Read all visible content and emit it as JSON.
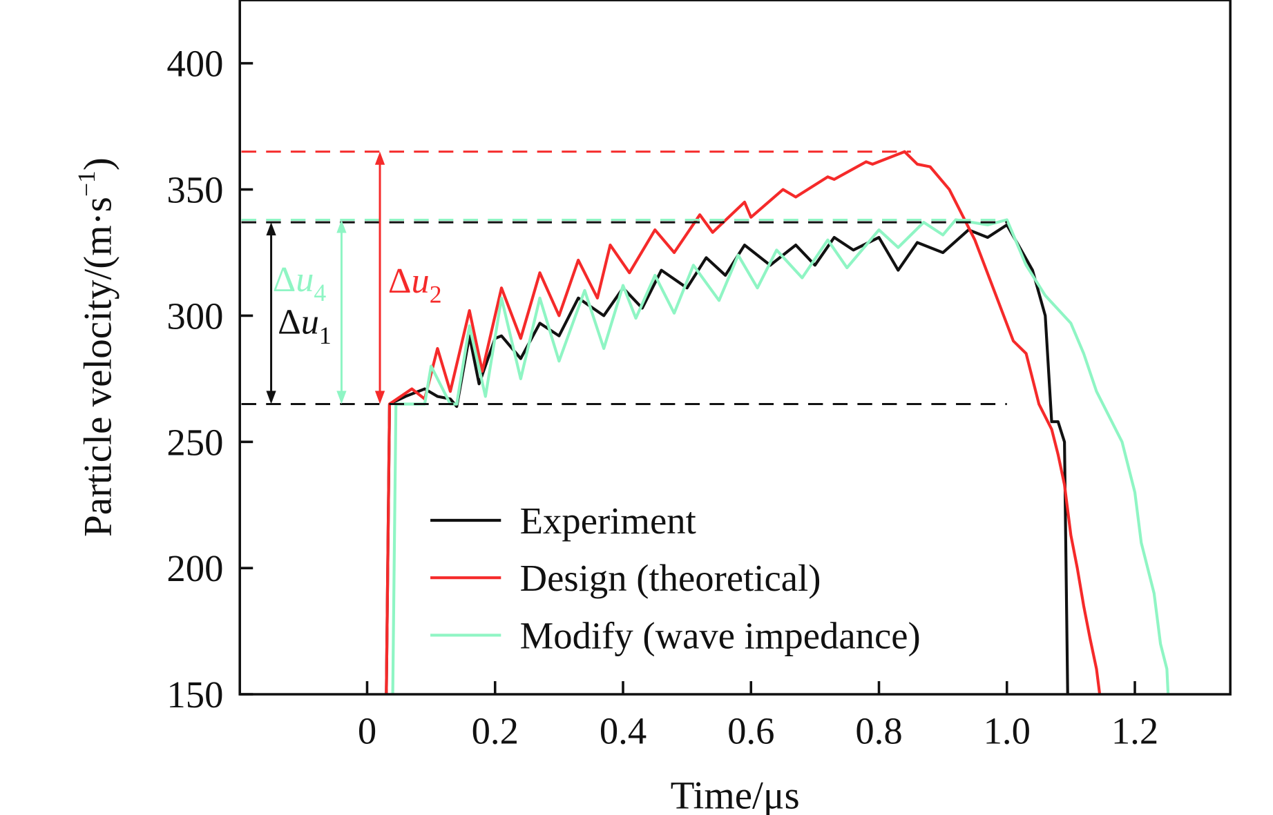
{
  "chart_data": {
    "type": "line",
    "xlabel": "Time/μs",
    "ylabel": "Particle velocity/(m·s",
    "ylabel_sup": "−1",
    "ylabel_close": ")",
    "xlim": [
      -0.2,
      1.35
    ],
    "ylim": [
      150,
      425
    ],
    "xticks": [
      0,
      0.2,
      0.4,
      0.6,
      0.8,
      1.0,
      1.2
    ],
    "xtick_labels": [
      "0",
      "0.2",
      "0.4",
      "0.6",
      "0.8",
      "1.0",
      "1.2"
    ],
    "yticks": [
      150,
      200,
      250,
      300,
      350,
      400
    ],
    "ytick_labels": [
      "150",
      "200",
      "250",
      "300",
      "350",
      "400"
    ],
    "grid": false,
    "legend_position": "bottom-center",
    "series": [
      {
        "name": "Experiment",
        "color": "#111111",
        "x": [
          0.03,
          0.035,
          0.06,
          0.09,
          0.11,
          0.13,
          0.14,
          0.16,
          0.175,
          0.2,
          0.21,
          0.24,
          0.27,
          0.3,
          0.33,
          0.37,
          0.4,
          0.43,
          0.46,
          0.5,
          0.53,
          0.56,
          0.59,
          0.63,
          0.67,
          0.7,
          0.73,
          0.76,
          0.8,
          0.83,
          0.86,
          0.9,
          0.94,
          0.97,
          1.0,
          1.04,
          1.06,
          1.07,
          1.08,
          1.09,
          1.095
        ],
        "y": [
          150,
          265,
          268,
          271,
          268,
          267,
          264,
          292,
          273,
          291,
          292,
          283,
          297,
          292,
          307,
          300,
          311,
          303,
          318,
          311,
          323,
          316,
          328,
          320,
          328,
          320,
          331,
          326,
          331,
          318,
          329,
          325,
          334,
          331,
          336,
          318,
          300,
          258,
          258,
          250,
          150
        ]
      },
      {
        "name": "Design (theoretical)",
        "color": "#f52a2a",
        "x": [
          0.03,
          0.035,
          0.07,
          0.09,
          0.11,
          0.13,
          0.16,
          0.18,
          0.21,
          0.24,
          0.27,
          0.3,
          0.33,
          0.36,
          0.38,
          0.41,
          0.45,
          0.48,
          0.52,
          0.54,
          0.59,
          0.6,
          0.65,
          0.67,
          0.72,
          0.73,
          0.78,
          0.79,
          0.84,
          0.86,
          0.88,
          0.91,
          0.95,
          0.98,
          1.01,
          1.03,
          1.04,
          1.05,
          1.07,
          1.08,
          1.09,
          1.1,
          1.11,
          1.12,
          1.13,
          1.14,
          1.145
        ],
        "y": [
          150,
          265,
          271,
          267,
          287,
          270,
          302,
          278,
          311,
          291,
          317,
          300,
          322,
          307,
          328,
          317,
          334,
          325,
          340,
          333,
          345,
          339,
          350,
          347,
          355,
          354,
          361,
          360,
          365,
          360,
          359,
          350,
          330,
          310,
          290,
          285,
          275,
          265,
          255,
          245,
          233,
          213,
          200,
          185,
          172,
          160,
          150
        ]
      },
      {
        "name": "Modify (wave impedance)",
        "color": "#8ff5c4",
        "x": [
          0.04,
          0.045,
          0.09,
          0.1,
          0.13,
          0.14,
          0.16,
          0.185,
          0.21,
          0.24,
          0.27,
          0.3,
          0.34,
          0.37,
          0.4,
          0.42,
          0.45,
          0.48,
          0.51,
          0.55,
          0.58,
          0.61,
          0.64,
          0.68,
          0.72,
          0.75,
          0.8,
          0.83,
          0.87,
          0.9,
          0.92,
          0.97,
          1.0,
          1.03,
          1.06,
          1.1,
          1.12,
          1.14,
          1.16,
          1.18,
          1.2,
          1.21,
          1.23,
          1.24,
          1.25,
          1.252
        ],
        "y": [
          150,
          265,
          265,
          280,
          265,
          265,
          296,
          268,
          307,
          275,
          307,
          282,
          310,
          287,
          312,
          299,
          316,
          301,
          320,
          306,
          324,
          311,
          326,
          315,
          330,
          319,
          334,
          327,
          337,
          332,
          338,
          336,
          338,
          320,
          308,
          297,
          285,
          270,
          260,
          250,
          230,
          210,
          190,
          170,
          160,
          150
        ]
      }
    ],
    "reference_lines": [
      {
        "y": 365,
        "color": "#f52a2a",
        "x_end": 0.85
      },
      {
        "y": 338,
        "color": "#8ff5c4",
        "x_end": 1.0
      },
      {
        "y": 337,
        "color": "#111111",
        "x_end": 1.0
      },
      {
        "y": 265,
        "color": "#111111",
        "x_end": 1.0
      }
    ],
    "annotations": [
      {
        "label": "Δu",
        "sub": "1",
        "color": "#111111",
        "x": -0.15,
        "from": 265,
        "to": 337
      },
      {
        "label": "Δu",
        "sub": "4",
        "color": "#8ff5c4",
        "x": -0.04,
        "from": 265,
        "to": 338
      },
      {
        "label": "Δu",
        "sub": "2",
        "color": "#f52a2a",
        "x": 0.02,
        "from": 265,
        "to": 365
      }
    ]
  }
}
